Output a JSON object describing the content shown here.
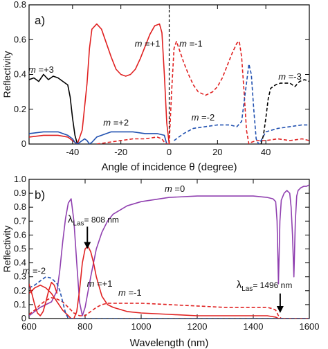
{
  "chart_data": [
    {
      "type": "line",
      "panel_label": "a)",
      "xlabel": "Angle of incidence θ (degree)",
      "ylabel": "Reflectivity",
      "xlim": [
        -58,
        58
      ],
      "ylim": [
        0,
        0.8
      ],
      "x_ticks": [
        -40,
        -20,
        0,
        20,
        40
      ],
      "y_ticks": [
        0,
        0.2,
        0.4,
        0.6,
        0.8
      ],
      "x_tick_labels": [
        "-40",
        "-20",
        "0",
        "20",
        "40"
      ],
      "y_tick_labels": [
        "0",
        "0.2",
        "0.4",
        "0.6",
        "0.8"
      ],
      "vline": {
        "x": 0,
        "style": "dashed",
        "color": "#000000"
      },
      "series": [
        {
          "name": "m =+3",
          "color": "#000000",
          "dash": false,
          "x": [
            -58,
            -56,
            -54,
            -52,
            -50,
            -48,
            -46,
            -44,
            -42,
            -41,
            -40,
            -39,
            -38
          ],
          "y": [
            0.37,
            0.38,
            0.36,
            0.4,
            0.37,
            0.39,
            0.38,
            0.36,
            0.34,
            0.27,
            0.15,
            0.05,
            0
          ]
        },
        {
          "name": "m =+1",
          "color": "#e02020",
          "dash": false,
          "x": [
            -58,
            -52,
            -46,
            -42,
            -40,
            -38,
            -36,
            -34,
            -33,
            -32,
            -30,
            -28,
            -26,
            -24,
            -22,
            -20,
            -18,
            -16,
            -14,
            -12,
            -10,
            -8,
            -6,
            -4,
            -3,
            -2,
            -1,
            0
          ],
          "y": [
            0.04,
            0.05,
            0.05,
            0.04,
            0.02,
            0,
            0.08,
            0.35,
            0.55,
            0.66,
            0.69,
            0.66,
            0.58,
            0.5,
            0.43,
            0.4,
            0.39,
            0.4,
            0.43,
            0.49,
            0.56,
            0.63,
            0.68,
            0.69,
            0.64,
            0.4,
            0.12,
            0
          ]
        },
        {
          "name": "m =+2",
          "color": "#2050b0",
          "dash": false,
          "x": [
            -58,
            -52,
            -46,
            -42,
            -40,
            -39,
            -38,
            -36,
            -35,
            -34,
            -33,
            -32,
            -30,
            -28,
            -26,
            -24,
            -20,
            -15,
            -10,
            -5,
            -2,
            -1
          ],
          "y": [
            0.06,
            0.07,
            0.07,
            0.05,
            0.03,
            0.01,
            0,
            0.02,
            0.03,
            0.02,
            0,
            0.01,
            0.04,
            0.05,
            0.06,
            0.07,
            0.07,
            0.07,
            0.06,
            0.06,
            0.05,
            0
          ]
        },
        {
          "name": "red-dashed-low",
          "color": "#e02020",
          "dash": true,
          "x": [
            -30,
            -25,
            -20,
            -15,
            -10,
            -5,
            -3,
            -2,
            -1
          ],
          "y": [
            0,
            0.01,
            0.02,
            0.03,
            0.03,
            0.04,
            0.03,
            0.01,
            0
          ]
        },
        {
          "name": "m =-1",
          "color": "#e02020",
          "dash": true,
          "x": [
            0,
            1,
            2,
            3,
            4,
            6,
            8,
            10,
            12,
            15,
            18,
            20,
            22,
            24,
            26,
            28,
            29,
            30,
            31,
            32,
            33,
            34,
            36,
            40,
            45,
            50,
            55,
            58
          ],
          "y": [
            0,
            0.3,
            0.55,
            0.59,
            0.55,
            0.47,
            0.4,
            0.34,
            0.3,
            0.28,
            0.3,
            0.33,
            0.38,
            0.45,
            0.52,
            0.58,
            0.59,
            0.5,
            0.3,
            0.08,
            0,
            0.01,
            0.02,
            0.02,
            0.03,
            0.02,
            0.03,
            0.02
          ]
        },
        {
          "name": "m =-2",
          "color": "#2050b0",
          "dash": true,
          "x": [
            2,
            4,
            6,
            10,
            15,
            20,
            25,
            28,
            30,
            32,
            33,
            34,
            35,
            36,
            37,
            38,
            40,
            45,
            50,
            55,
            58
          ],
          "y": [
            0.02,
            0.04,
            0.06,
            0.09,
            0.1,
            0.11,
            0.11,
            0.1,
            0.13,
            0.35,
            0.46,
            0.4,
            0.2,
            0.03,
            0,
            0.02,
            0.07,
            0.09,
            0.1,
            0.11,
            0.11
          ]
        },
        {
          "name": "m =-3",
          "color": "#000000",
          "dash": true,
          "x": [
            38,
            39,
            40,
            41,
            42,
            44,
            46,
            48,
            50,
            52,
            54,
            56,
            58
          ],
          "y": [
            0,
            0.05,
            0.15,
            0.26,
            0.32,
            0.34,
            0.35,
            0.35,
            0.35,
            0.33,
            0.36,
            0.37,
            0.36
          ]
        }
      ],
      "annotations": [
        {
          "text": "m =+3",
          "x": -53,
          "y": 0.41
        },
        {
          "text": "m =+1",
          "x": -9,
          "y": 0.56
        },
        {
          "text": "m =-1",
          "x": 9,
          "y": 0.56
        },
        {
          "text": "m =+2",
          "x": -22,
          "y": 0.105
        },
        {
          "text": "m =-2",
          "x": 14,
          "y": 0.135
        },
        {
          "text": "m =-3",
          "x": 50,
          "y": 0.37
        }
      ]
    },
    {
      "type": "line",
      "panel_label": "b)",
      "xlabel": "Wavelength (nm)",
      "ylabel": "Reflectivity",
      "xlim": [
        600,
        1600
      ],
      "ylim": [
        0,
        1.0
      ],
      "x_ticks": [
        600,
        800,
        1000,
        1200,
        1400,
        1600
      ],
      "y_ticks": [
        0,
        0.1,
        0.2,
        0.3,
        0.4,
        0.5,
        0.6,
        0.7,
        0.8,
        0.9,
        1.0
      ],
      "x_tick_labels": [
        "600",
        "800",
        "1000",
        "1200",
        "1400",
        "1600"
      ],
      "y_tick_labels": [
        "0",
        "0.1",
        "0.2",
        "0.3",
        "0.4",
        "0.5",
        "0.6",
        "0.7",
        "0.8",
        "0.9",
        "1.0"
      ],
      "series": [
        {
          "name": "m =0",
          "color": "#9040b0",
          "dash": false,
          "x": [
            600,
            620,
            640,
            660,
            680,
            700,
            710,
            720,
            730,
            740,
            750,
            760,
            770,
            780,
            790,
            800,
            820,
            840,
            860,
            880,
            900,
            950,
            1000,
            1100,
            1200,
            1300,
            1400,
            1450,
            1470,
            1480,
            1485,
            1490,
            1495,
            1500,
            1510,
            1520,
            1530,
            1535,
            1540,
            1545,
            1550,
            1555,
            1560,
            1570,
            1580,
            1590,
            1600
          ],
          "y": [
            0.02,
            0.05,
            0.08,
            0.1,
            0.12,
            0.2,
            0.35,
            0.55,
            0.72,
            0.83,
            0.86,
            0.7,
            0.4,
            0.12,
            0.02,
            0.08,
            0.3,
            0.5,
            0.62,
            0.7,
            0.75,
            0.81,
            0.84,
            0.87,
            0.88,
            0.88,
            0.88,
            0.87,
            0.86,
            0.84,
            0.7,
            0.25,
            0.7,
            0.85,
            0.9,
            0.92,
            0.9,
            0.8,
            0.6,
            0.3,
            0.7,
            0.88,
            0.92,
            0.94,
            0.95,
            0.95,
            0.96
          ]
        },
        {
          "name": "m =+1",
          "color": "#e02020",
          "dash": false,
          "x": [
            600,
            620,
            640,
            660,
            680,
            700,
            720,
            740,
            750,
            760,
            770,
            780,
            790,
            800,
            810,
            820,
            830,
            840,
            860,
            880,
            900,
            950,
            1000,
            1100,
            1200,
            1300,
            1400,
            1450,
            1480,
            1490,
            1500,
            1600
          ],
          "y": [
            0.18,
            0.22,
            0.24,
            0.22,
            0.18,
            0.12,
            0.06,
            0.02,
            0,
            0,
            0.05,
            0.2,
            0.4,
            0.5,
            0.52,
            0.48,
            0.4,
            0.3,
            0.16,
            0.1,
            0.08,
            0.05,
            0.04,
            0.03,
            0.02,
            0.02,
            0.02,
            0.02,
            0.01,
            0,
            0,
            0
          ]
        },
        {
          "name": "m =-1",
          "color": "#e02020",
          "dash": true,
          "x": [
            600,
            620,
            640,
            660,
            680,
            700,
            720,
            740,
            760,
            780,
            800,
            820,
            840,
            860,
            880,
            900,
            950,
            1000,
            1100,
            1200,
            1300,
            1400,
            1450,
            1470,
            1480,
            1490,
            1500,
            1510,
            1600
          ],
          "y": [
            0.03,
            0.06,
            0.1,
            0.13,
            0.15,
            0.14,
            0.12,
            0.08,
            0.04,
            0.02,
            0.02,
            0.05,
            0.08,
            0.1,
            0.11,
            0.11,
            0.11,
            0.11,
            0.1,
            0.09,
            0.08,
            0.08,
            0.08,
            0.07,
            0.06,
            0.02,
            0,
            0,
            0
          ]
        },
        {
          "name": "m =-2",
          "color": "#2050b0",
          "dash": true,
          "x": [
            600,
            620,
            640,
            660,
            680,
            700,
            710,
            720,
            730,
            740,
            750,
            760,
            780,
            800,
            900,
            1000,
            1200,
            1400,
            1500,
            1600
          ],
          "y": [
            0.22,
            0.24,
            0.27,
            0.3,
            0.29,
            0.25,
            0.2,
            0.12,
            0.04,
            0,
            0,
            0,
            0,
            0,
            0,
            0,
            0,
            0,
            0,
            0
          ]
        },
        {
          "name": "red-solid-low",
          "color": "#e02020",
          "dash": false,
          "x": [
            600,
            610,
            620,
            630,
            640,
            650,
            660,
            670,
            680,
            690,
            700
          ],
          "y": [
            0.25,
            0.18,
            0.1,
            0.04,
            0.02,
            0.05,
            0.12,
            0.2,
            0.26,
            0.24,
            0.18
          ]
        }
      ],
      "annotations": [
        {
          "text": "m =0",
          "x": 1120,
          "y": 0.91
        },
        {
          "text": "m =+1",
          "x": 852,
          "y": 0.23
        },
        {
          "text": "m =-1",
          "x": 960,
          "y": 0.165
        },
        {
          "text": "m =-2",
          "x": 618,
          "y": 0.32
        }
      ],
      "arrows": [
        {
          "label_main": "λ",
          "label_sub": "Las",
          "label_rest": "= 808 nm",
          "x": 808,
          "y_from": 0.66,
          "y_to": 0.5,
          "label_x": 738,
          "label_y": 0.69
        },
        {
          "label_main": "λ",
          "label_sub": "Las",
          "label_rest": "= 1496 nm",
          "x": 1496,
          "y_from": 0.18,
          "y_to": 0.04,
          "label_x": 1340,
          "label_y": 0.22
        }
      ]
    }
  ]
}
